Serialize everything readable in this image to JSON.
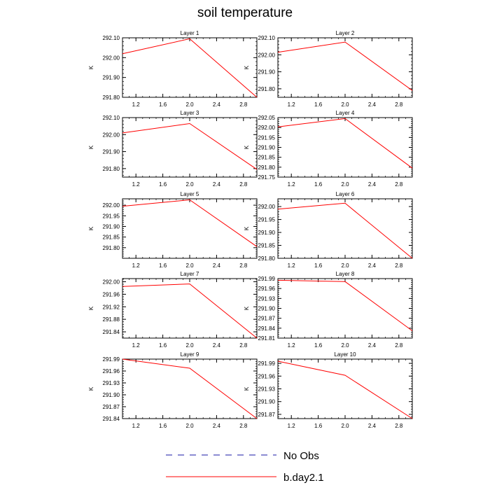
{
  "figure": {
    "title": "soil temperature",
    "colors": {
      "model": "#ff0000",
      "obs": "#1a1aa6",
      "axes": "#000000"
    }
  },
  "legend": {
    "items": [
      {
        "label": "No Obs",
        "style": "dashed",
        "color": "#1a1aa6"
      },
      {
        "label": "b.day2.1",
        "style": "solid",
        "color": "#ff0000"
      }
    ]
  },
  "chart_data": [
    {
      "type": "line",
      "title": "Layer 1",
      "ylabel": "K",
      "xlabel": "",
      "xlim": [
        1.0,
        3.0
      ],
      "ylim": [
        291.8,
        292.1
      ],
      "xticks": [
        1.2,
        1.6,
        2.0,
        2.4,
        2.8
      ],
      "xtick_labels": [
        "1.2",
        "1.6",
        "2.0",
        "2.4",
        "2.8"
      ],
      "yticks": [
        291.8,
        291.9,
        292.0,
        292.1
      ],
      "ytick_labels": [
        "291.80",
        "291.90",
        "292.00",
        "292.10"
      ],
      "series": [
        {
          "name": "b.day2.1",
          "x": [
            1,
            2,
            3
          ],
          "values": [
            292.02,
            292.095,
            291.8
          ]
        }
      ]
    },
    {
      "type": "line",
      "title": "Layer 2",
      "ylabel": "K",
      "xlabel": "",
      "xlim": [
        1.0,
        3.0
      ],
      "ylim": [
        291.75,
        292.1
      ],
      "xticks": [
        1.2,
        1.6,
        2.0,
        2.4,
        2.8
      ],
      "xtick_labels": [
        "1.2",
        "1.6",
        "2.0",
        "2.4",
        "2.8"
      ],
      "yticks": [
        291.8,
        291.9,
        292.0,
        292.1
      ],
      "ytick_labels": [
        "291.80",
        "291.90",
        "292.00",
        "292.10"
      ],
      "series": [
        {
          "name": "b.day2.1",
          "x": [
            1,
            2,
            3
          ],
          "values": [
            292.015,
            292.075,
            291.79
          ]
        }
      ]
    },
    {
      "type": "line",
      "title": "Layer 3",
      "ylabel": "K",
      "xlabel": "",
      "xlim": [
        1.0,
        3.0
      ],
      "ylim": [
        291.75,
        292.1
      ],
      "xticks": [
        1.2,
        1.6,
        2.0,
        2.4,
        2.8
      ],
      "xtick_labels": [
        "1.2",
        "1.6",
        "2.0",
        "2.4",
        "2.8"
      ],
      "yticks": [
        291.8,
        291.9,
        292.0,
        292.1
      ],
      "ytick_labels": [
        "291.80",
        "291.90",
        "292.00",
        "292.10"
      ],
      "series": [
        {
          "name": "b.day2.1",
          "x": [
            1,
            2,
            3
          ],
          "values": [
            292.01,
            292.065,
            291.795
          ]
        }
      ]
    },
    {
      "type": "line",
      "title": "Layer 4",
      "ylabel": "K",
      "xlabel": "",
      "xlim": [
        1.0,
        3.0
      ],
      "ylim": [
        291.75,
        292.05
      ],
      "xticks": [
        1.2,
        1.6,
        2.0,
        2.4,
        2.8
      ],
      "xtick_labels": [
        "1.2",
        "1.6",
        "2.0",
        "2.4",
        "2.8"
      ],
      "yticks": [
        291.75,
        291.8,
        291.85,
        291.9,
        291.95,
        292.0,
        292.05
      ],
      "ytick_labels": [
        "291.75",
        "291.80",
        "291.85",
        "291.90",
        "291.95",
        "292.00",
        "292.05"
      ],
      "series": [
        {
          "name": "b.day2.1",
          "x": [
            1,
            2,
            3
          ],
          "values": [
            292.003,
            292.045,
            291.795
          ]
        }
      ]
    },
    {
      "type": "line",
      "title": "Layer 5",
      "ylabel": "K",
      "xlabel": "",
      "xlim": [
        1.0,
        3.0
      ],
      "ylim": [
        291.75,
        292.03
      ],
      "xticks": [
        1.2,
        1.6,
        2.0,
        2.4,
        2.8
      ],
      "xtick_labels": [
        "1.2",
        "1.6",
        "2.0",
        "2.4",
        "2.8"
      ],
      "yticks": [
        291.8,
        291.85,
        291.9,
        291.95,
        292.0
      ],
      "ytick_labels": [
        "291.80",
        "291.85",
        "291.90",
        "291.95",
        "292.00"
      ],
      "series": [
        {
          "name": "b.day2.1",
          "x": [
            1,
            2,
            3
          ],
          "values": [
            291.995,
            292.025,
            291.805
          ]
        }
      ]
    },
    {
      "type": "line",
      "title": "Layer 6",
      "ylabel": "K",
      "xlabel": "",
      "xlim": [
        1.0,
        3.0
      ],
      "ylim": [
        291.8,
        292.03
      ],
      "xticks": [
        1.2,
        1.6,
        2.0,
        2.4,
        2.8
      ],
      "xtick_labels": [
        "1.2",
        "1.6",
        "2.0",
        "2.4",
        "2.8"
      ],
      "yticks": [
        291.8,
        291.85,
        291.9,
        291.95,
        292.0
      ],
      "ytick_labels": [
        "291.80",
        "291.85",
        "291.90",
        "291.95",
        "292.00"
      ],
      "series": [
        {
          "name": "b.day2.1",
          "x": [
            1,
            2,
            3
          ],
          "values": [
            291.99,
            292.013,
            291.8
          ]
        }
      ]
    },
    {
      "type": "line",
      "title": "Layer 7",
      "ylabel": "K",
      "xlabel": "",
      "xlim": [
        1.0,
        3.0
      ],
      "ylim": [
        291.82,
        292.01
      ],
      "xticks": [
        1.2,
        1.6,
        2.0,
        2.4,
        2.8
      ],
      "xtick_labels": [
        "1.2",
        "1.6",
        "2.0",
        "2.4",
        "2.8"
      ],
      "yticks": [
        291.84,
        291.88,
        291.92,
        291.96,
        292.0
      ],
      "ytick_labels": [
        "291.84",
        "291.88",
        "291.92",
        "291.96",
        "292.00"
      ],
      "series": [
        {
          "name": "b.day2.1",
          "x": [
            1,
            2,
            3
          ],
          "values": [
            291.985,
            291.993,
            291.82
          ]
        }
      ]
    },
    {
      "type": "line",
      "title": "Layer 8",
      "ylabel": "K",
      "xlabel": "",
      "xlim": [
        1.0,
        3.0
      ],
      "ylim": [
        291.81,
        291.99
      ],
      "xticks": [
        1.2,
        1.6,
        2.0,
        2.4,
        2.8
      ],
      "xtick_labels": [
        "1.2",
        "1.6",
        "2.0",
        "2.4",
        "2.8"
      ],
      "yticks": [
        291.81,
        291.84,
        291.87,
        291.9,
        291.93,
        291.96,
        291.99
      ],
      "ytick_labels": [
        "291.81",
        "291.84",
        "291.87",
        "291.90",
        "291.93",
        "291.96",
        "291.99"
      ],
      "series": [
        {
          "name": "b.day2.1",
          "x": [
            1,
            2,
            3
          ],
          "values": [
            291.985,
            291.981,
            291.832
          ]
        }
      ]
    },
    {
      "type": "line",
      "title": "Layer 9",
      "ylabel": "K",
      "xlabel": "",
      "xlim": [
        1.0,
        3.0
      ],
      "ylim": [
        291.84,
        291.99
      ],
      "xticks": [
        1.2,
        1.6,
        2.0,
        2.4,
        2.8
      ],
      "xtick_labels": [
        "1.2",
        "1.6",
        "2.0",
        "2.4",
        "2.8"
      ],
      "yticks": [
        291.84,
        291.87,
        291.9,
        291.93,
        291.96,
        291.99
      ],
      "ytick_labels": [
        "291.84",
        "291.87",
        "291.90",
        "291.93",
        "291.96",
        "291.99"
      ],
      "series": [
        {
          "name": "b.day2.1",
          "x": [
            1,
            2,
            3
          ],
          "values": [
            291.99,
            291.967,
            291.84
          ]
        }
      ]
    },
    {
      "type": "line",
      "title": "Layer 10",
      "ylabel": "K",
      "xlabel": "",
      "xlim": [
        1.0,
        3.0
      ],
      "ylim": [
        291.86,
        292.0
      ],
      "xticks": [
        1.2,
        1.6,
        2.0,
        2.4,
        2.8
      ],
      "xtick_labels": [
        "1.2",
        "1.6",
        "2.0",
        "2.4",
        "2.8"
      ],
      "yticks": [
        291.87,
        291.9,
        291.93,
        291.96,
        291.99
      ],
      "ytick_labels": [
        "291.87",
        "291.90",
        "291.93",
        "291.96",
        "291.99"
      ],
      "series": [
        {
          "name": "b.day2.1",
          "x": [
            1,
            2,
            3
          ],
          "values": [
            291.995,
            291.962,
            291.86
          ]
        }
      ]
    }
  ]
}
